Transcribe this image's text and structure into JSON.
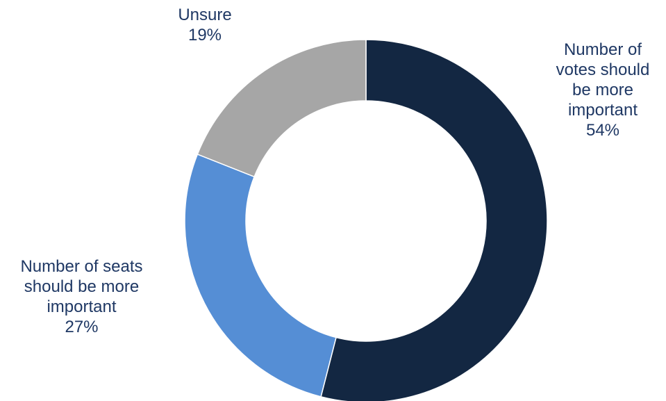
{
  "chart_data": {
    "type": "pie",
    "donut": true,
    "title": "",
    "categories": [
      "Number of votes should be more important",
      "Number of seats should be more important",
      "Unsure"
    ],
    "values": [
      54,
      27,
      19
    ],
    "value_labels": [
      "54%",
      "27%",
      "19%"
    ],
    "colors": [
      "#132742",
      "#558ed5",
      "#a6a6a6"
    ],
    "label_lines": [
      [
        "Number of",
        "votes should",
        "be more",
        "important"
      ],
      [
        "Number of seats",
        "should be more",
        "important"
      ],
      [
        "Unsure"
      ]
    ],
    "label_color": "#1f3864",
    "legend": "none"
  }
}
